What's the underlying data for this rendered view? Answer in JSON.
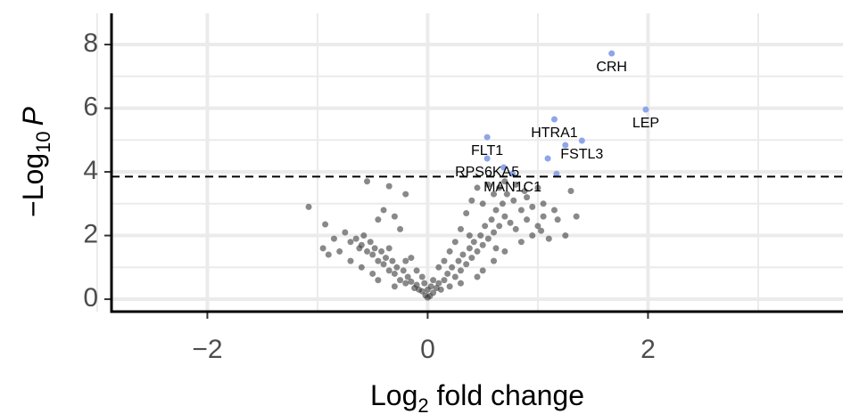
{
  "chart_data": {
    "type": "scatter",
    "x_label": [
      "Log",
      "2",
      " fold change"
    ],
    "y_label": [
      "−Log",
      "10",
      "P"
    ],
    "xlim": [
      -2.87,
      3.77
    ],
    "ylim": [
      -0.39,
      8.98
    ],
    "xticks": [
      {
        "value": -2,
        "label": "−2"
      },
      0,
      2
    ],
    "yticks": [
      0,
      2,
      4,
      6,
      8
    ],
    "x_minor_grid": [
      -3,
      -1,
      1,
      3
    ],
    "y_minor_grid": [
      1,
      3,
      5,
      7
    ],
    "grid": true,
    "threshold": 3.85,
    "series": [
      {
        "color": "#3a3a3a",
        "x": [
          0,
          0.02,
          -0.02,
          0.05,
          -0.05,
          0.08,
          -0.08,
          0.1,
          -0.1,
          0.12,
          -0.12,
          0.15,
          -0.15,
          0.18,
          -0.18,
          0.2,
          -0.2,
          0.22,
          -0.22,
          0.25,
          -0.25,
          0.28,
          -0.28,
          0.3,
          -0.3,
          0.32,
          -0.32,
          0.35,
          -0.35,
          0.38,
          -0.38,
          0.4,
          -0.4,
          0.42,
          -0.42,
          0.45,
          -0.45,
          0.48,
          -0.48,
          0.5,
          -0.5,
          0.52,
          -0.52,
          0.55,
          -0.55,
          0.58,
          -0.58,
          0.6,
          -0.6,
          0.62,
          -0.62,
          0.65,
          -0.65,
          0.68,
          -0.7,
          0.7,
          -0.75,
          0.72,
          -0.8,
          0.75,
          -0.85,
          0.78,
          -0.9,
          0.8,
          0.85,
          0.88,
          0.9,
          0.95,
          1.0,
          1.03,
          1.05,
          1.1,
          1.18,
          1.35,
          1.25,
          -1.08,
          -0.93,
          -0.55,
          -0.35,
          -0.2,
          -0.3,
          -0.25,
          -0.45,
          -0.4,
          0.3,
          0.35,
          0.4,
          0.45,
          0.5,
          0.55,
          0.6,
          0.65,
          0.7,
          0.8,
          0.9,
          1.0,
          1.05,
          1.3,
          0.25,
          -0.15,
          -0.1,
          0.1,
          0.05,
          -0.05,
          0.15,
          -0.6,
          -0.7,
          0.6,
          0.7,
          -0.3,
          0.3,
          -0.5,
          0.5,
          0,
          -0.03,
          0.03,
          0.2,
          -0.2,
          0.95,
          -0.95,
          0.85,
          -0.45,
          0.45,
          0.62,
          -0.35,
          0.38,
          1.15
        ],
        "y": [
          0.05,
          0.1,
          0.12,
          0.2,
          0.25,
          0.35,
          0.3,
          0.5,
          0.45,
          0.3,
          0.35,
          0.6,
          0.55,
          0.8,
          0.7,
          0.4,
          0.5,
          1.0,
          0.9,
          0.7,
          0.6,
          1.2,
          1.0,
          0.9,
          0.8,
          1.4,
          1.2,
          1.1,
          0.9,
          1.6,
          1.3,
          1.3,
          1.1,
          1.8,
          1.5,
          1.5,
          1.2,
          2.0,
          1.6,
          1.7,
          1.4,
          2.3,
          1.8,
          1.9,
          1.5,
          2.5,
          2.0,
          2.1,
          1.7,
          2.8,
          1.6,
          2.3,
          1.9,
          3.0,
          1.8,
          2.6,
          2.1,
          3.3,
          1.5,
          2.4,
          1.9,
          3.1,
          1.4,
          2.2,
          2.8,
          3.4,
          2.5,
          2.9,
          2.3,
          2.15,
          2.6,
          1.9,
          2.5,
          2.6,
          2.0,
          2.9,
          2.35,
          3.7,
          3.55,
          3.3,
          2.6,
          2.2,
          2.5,
          2.8,
          2.2,
          2.7,
          3.1,
          3.5,
          3.0,
          3.6,
          3.3,
          3.5,
          3.7,
          3.6,
          3.2,
          3.5,
          3.0,
          3.4,
          1.8,
          1.3,
          0.9,
          1.0,
          0.6,
          0.7,
          1.2,
          1.0,
          1.2,
          1.2,
          1.5,
          0.4,
          0.5,
          0.8,
          0.9,
          0.3,
          0.5,
          0.4,
          1.5,
          1.2,
          2.0,
          1.6,
          1.8,
          0.6,
          0.7,
          1.6,
          1.6,
          2.0,
          2.8
        ]
      },
      {
        "color": "#8ea5e8",
        "x": [
          1.67,
          1.98,
          1.15,
          1.4,
          0.54,
          0.54,
          0.77,
          1.09,
          1.17,
          1.25,
          0.69
        ],
        "y": [
          7.72,
          5.96,
          5.65,
          4.98,
          5.09,
          4.42,
          3.94,
          4.42,
          3.94,
          4.84,
          4.14
        ],
        "labels": [
          "CRH",
          "LEP",
          "HTRA1",
          "FSTL3",
          "FLT1",
          "RPS6KA5",
          "MAN1C1",
          null,
          null,
          null,
          null
        ]
      }
    ]
  }
}
